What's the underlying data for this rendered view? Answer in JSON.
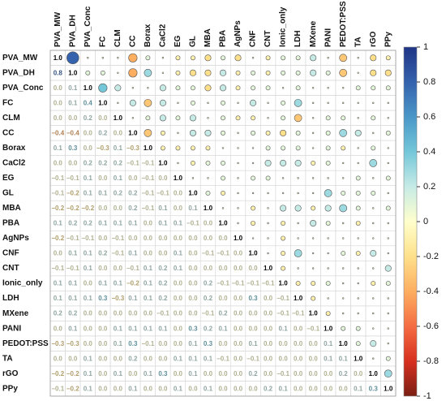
{
  "chart_data": {
    "type": "corrplot",
    "variables": [
      "PVA_MW",
      "PVA_DH",
      "PVA_Conc",
      "FC",
      "CLM",
      "CC",
      "Borax",
      "CaCl2",
      "EG",
      "GL",
      "MBA",
      "PBA",
      "AgNPs",
      "CNF",
      "CNT",
      "Ionic_only",
      "LDH",
      "MXene",
      "PANI",
      "PEDOT:PSS",
      "TA",
      "rGO",
      "PPy"
    ],
    "values": [
      [
        1.0
      ],
      [
        0.8,
        1.0
      ],
      [
        0.0,
        0.1,
        1.0
      ],
      [
        0.0,
        0.1,
        0.4,
        1.0
      ],
      [
        0.0,
        0.0,
        0.2,
        0.0,
        1.0
      ],
      [
        -0.4,
        -0.4,
        0.0,
        0.2,
        0.0,
        1.0
      ],
      [
        0.1,
        0.3,
        0.0,
        -0.3,
        0.1,
        -0.3,
        1.0
      ],
      [
        0.0,
        0.0,
        0.2,
        0.2,
        0.2,
        -0.1,
        -0.1,
        1.0
      ],
      [
        -0.1,
        -0.1,
        0.1,
        0.0,
        0.1,
        0.0,
        -0.1,
        0.0,
        1.0
      ],
      [
        -0.1,
        -0.2,
        0.1,
        0.1,
        0.2,
        0.2,
        -0.1,
        -0.1,
        0.0,
        1.0
      ],
      [
        -0.2,
        -0.2,
        -0.2,
        0.0,
        0.0,
        0.2,
        -0.1,
        0.1,
        0.0,
        0.1,
        1.0
      ],
      [
        0.1,
        0.2,
        0.2,
        0.1,
        0.1,
        0.1,
        0.0,
        0.1,
        0.1,
        -0.1,
        0.0,
        1.0
      ],
      [
        -0.2,
        -0.1,
        -0.1,
        0.0,
        -0.1,
        0.0,
        0.0,
        0.0,
        0.0,
        0.0,
        0.0,
        0.0,
        1.0
      ],
      [
        0.0,
        0.1,
        0.1,
        0.2,
        -0.1,
        0.1,
        0.0,
        0.0,
        0.1,
        0.0,
        -0.1,
        -0.1,
        0.0,
        1.0
      ],
      [
        -0.1,
        -0.1,
        0.1,
        0.0,
        0.0,
        -0.1,
        0.1,
        0.2,
        0.1,
        0.0,
        0.0,
        0.0,
        0.0,
        0.0,
        1.0
      ],
      [
        0.1,
        0.1,
        0.0,
        0.1,
        0.1,
        -0.2,
        0.1,
        0.2,
        0.0,
        0.0,
        0.2,
        -0.1,
        -0.1,
        -0.1,
        -0.1,
        1.0
      ],
      [
        0.1,
        0.1,
        0.1,
        0.3,
        -0.3,
        0.1,
        0.1,
        0.2,
        0.0,
        0.0,
        0.2,
        0.0,
        0.0,
        0.3,
        0.0,
        -0.1,
        1.0
      ],
      [
        0.2,
        0.2,
        0.0,
        0.0,
        0.0,
        0.0,
        0.0,
        -0.1,
        0.0,
        0.0,
        -0.1,
        0.2,
        0.0,
        0.0,
        0.0,
        -0.1,
        -0.1,
        1.0
      ],
      [
        0.0,
        0.1,
        0.0,
        0.0,
        0.1,
        0.1,
        0.1,
        0.1,
        0.0,
        0.3,
        0.2,
        0.1,
        0.0,
        0.0,
        0.0,
        0.1,
        0.0,
        -0.1,
        1.0
      ],
      [
        -0.3,
        -0.3,
        0.0,
        0.0,
        0.1,
        0.3,
        -0.1,
        0.0,
        0.0,
        0.1,
        0.3,
        0.0,
        0.0,
        0.1,
        0.0,
        0.0,
        0.0,
        0.0,
        0.1,
        1.0
      ],
      [
        0.0,
        0.0,
        0.1,
        0.0,
        0.0,
        0.2,
        0.0,
        0.0,
        0.1,
        0.1,
        0.1,
        -0.1,
        0.0,
        -0.1,
        0.0,
        0.0,
        0.0,
        0.0,
        0.1,
        0.1,
        1.0
      ],
      [
        -0.2,
        -0.2,
        0.1,
        0.0,
        0.1,
        0.0,
        0.1,
        0.3,
        0.0,
        0.1,
        0.0,
        0.0,
        0.0,
        0.2,
        0.0,
        -0.1,
        0.0,
        0.0,
        0.0,
        0.2,
        0.0,
        1.0
      ],
      [
        -0.1,
        -0.2,
        0.1,
        0.0,
        0.0,
        0.1,
        0.0,
        0.0,
        0.1,
        0.0,
        0.1,
        0.0,
        0.0,
        0.0,
        0.2,
        0.1,
        0.0,
        0.0,
        0.0,
        0.0,
        0.1,
        0.3,
        1.0
      ]
    ],
    "value_labels": [
      [
        "1.0"
      ],
      [
        "0.8",
        "1.0"
      ],
      [
        "0.0",
        "0.1",
        "1.0"
      ],
      [
        "0.0",
        "0.1",
        "0.4",
        "1.0"
      ],
      [
        "0.0",
        "0.0",
        "0.2",
        "0.0",
        "1.0"
      ],
      [
        "−0.4",
        "−0.4",
        "0.0",
        "0.2",
        "0.0",
        "1.0"
      ],
      [
        "0.1",
        "0.3",
        "0.0",
        "−0.3",
        "0.1",
        "−0.3",
        "1.0"
      ],
      [
        "0.0",
        "0.0",
        "0.2",
        "0.2",
        "0.2",
        "−0.1",
        "−0.1",
        "1.0"
      ],
      [
        "−0.1",
        "−0.1",
        "0.1",
        "0.0",
        "0.1",
        "0.0",
        "−0.1",
        "0.0",
        "1.0"
      ],
      [
        "−0.1",
        "−0.2",
        "0.1",
        "0.1",
        "0.2",
        "0.2",
        "−0.1",
        "−0.1",
        "0.0",
        "1.0"
      ],
      [
        "−0.2",
        "−0.2",
        "−0.2",
        "0.0",
        "0.0",
        "0.2",
        "−0.1",
        "0.1",
        "0.0",
        "0.1",
        "1.0"
      ],
      [
        "0.1",
        "0.2",
        "0.2",
        "0.1",
        "0.1",
        "0.1",
        "0.0",
        "0.1",
        "0.1",
        "−0.1",
        "0.0",
        "1.0"
      ],
      [
        "−0.2",
        "−0.1",
        "−0.1",
        "0.0",
        "−0.1",
        "0.0",
        "0.0",
        "0.0",
        "0.0",
        "0.0",
        "0.0",
        "0.0",
        "1.0"
      ],
      [
        "0.0",
        "0.1",
        "0.1",
        "0.2",
        "−0.1",
        "0.1",
        "0.0",
        "0.0",
        "0.1",
        "0.0",
        "−0.1",
        "−0.1",
        "0.0",
        "1.0"
      ],
      [
        "−0.1",
        "−0.1",
        "0.1",
        "0.0",
        "0.0",
        "−0.1",
        "0.1",
        "0.2",
        "0.1",
        "0.0",
        "0.0",
        "0.0",
        "0.0",
        "0.0",
        "1.0"
      ],
      [
        "0.1",
        "0.1",
        "0.0",
        "0.1",
        "0.1",
        "−0.2",
        "0.1",
        "0.2",
        "0.0",
        "0.0",
        "0.2",
        "−0.1",
        "−0.1",
        "−0.1",
        "−0.1",
        "1.0"
      ],
      [
        "0.1",
        "0.1",
        "0.1",
        "0.3",
        "−0.3",
        "0.1",
        "0.1",
        "0.2",
        "0.0",
        "0.0",
        "0.2",
        "0.0",
        "0.0",
        "0.3",
        "0.0",
        "−0.1",
        "1.0"
      ],
      [
        "0.2",
        "0.2",
        "0.0",
        "0.0",
        "0.0",
        "0.0",
        "0.0",
        "−0.1",
        "0.0",
        "0.0",
        "−0.1",
        "0.2",
        "0.0",
        "0.0",
        "0.0",
        "−0.1",
        "−0.1",
        "1.0"
      ],
      [
        "0.0",
        "0.1",
        "0.0",
        "0.0",
        "0.1",
        "0.1",
        "0.1",
        "0.1",
        "0.0",
        "0.3",
        "0.2",
        "0.1",
        "0.0",
        "0.0",
        "0.0",
        "0.1",
        "0.0",
        "−0.1",
        "1.0"
      ],
      [
        "−0.3",
        "−0.3",
        "0.0",
        "0.0",
        "0.1",
        "0.3",
        "−0.1",
        "0.0",
        "0.0",
        "0.1",
        "0.3",
        "0.0",
        "0.0",
        "0.1",
        "0.0",
        "0.0",
        "0.0",
        "0.0",
        "0.1",
        "1.0"
      ],
      [
        "0.0",
        "0.0",
        "0.1",
        "0.0",
        "0.0",
        "0.2",
        "0.0",
        "0.0",
        "0.1",
        "0.1",
        "0.1",
        "−0.1",
        "0.0",
        "−0.1",
        "0.0",
        "0.0",
        "0.0",
        "0.0",
        "0.1",
        "0.1",
        "1.0"
      ],
      [
        "−0.2",
        "−0.2",
        "0.1",
        "0.0",
        "0.1",
        "0.0",
        "0.1",
        "0.3",
        "0.0",
        "0.1",
        "0.0",
        "0.0",
        "0.0",
        "0.2",
        "0.0",
        "−0.1",
        "0.0",
        "0.0",
        "0.0",
        "0.2",
        "0.0",
        "1.0"
      ],
      [
        "−0.1",
        "−0.2",
        "0.1",
        "0.0",
        "0.0",
        "0.1",
        "0.0",
        "0.0",
        "0.1",
        "0.0",
        "0.1",
        "0.0",
        "0.0",
        "0.0",
        "0.2",
        "0.1",
        "0.0",
        "0.0",
        "0.0",
        "0.0",
        "0.1",
        "0.3",
        "1.0"
      ]
    ],
    "colorscale": [
      "#7a1f14",
      "#d7301f",
      "#f46d43",
      "#fdae61",
      "#fee08b",
      "#ffffcc",
      "#c6ebe6",
      "#74c7d9",
      "#4a97c8",
      "#3462ad",
      "#1f3586"
    ],
    "ylim": [
      -1,
      1
    ],
    "yticks": [
      1,
      0.8,
      0.6,
      0.4,
      0.2,
      0,
      -0.2,
      -0.4,
      -0.6,
      -0.8,
      -1
    ]
  }
}
